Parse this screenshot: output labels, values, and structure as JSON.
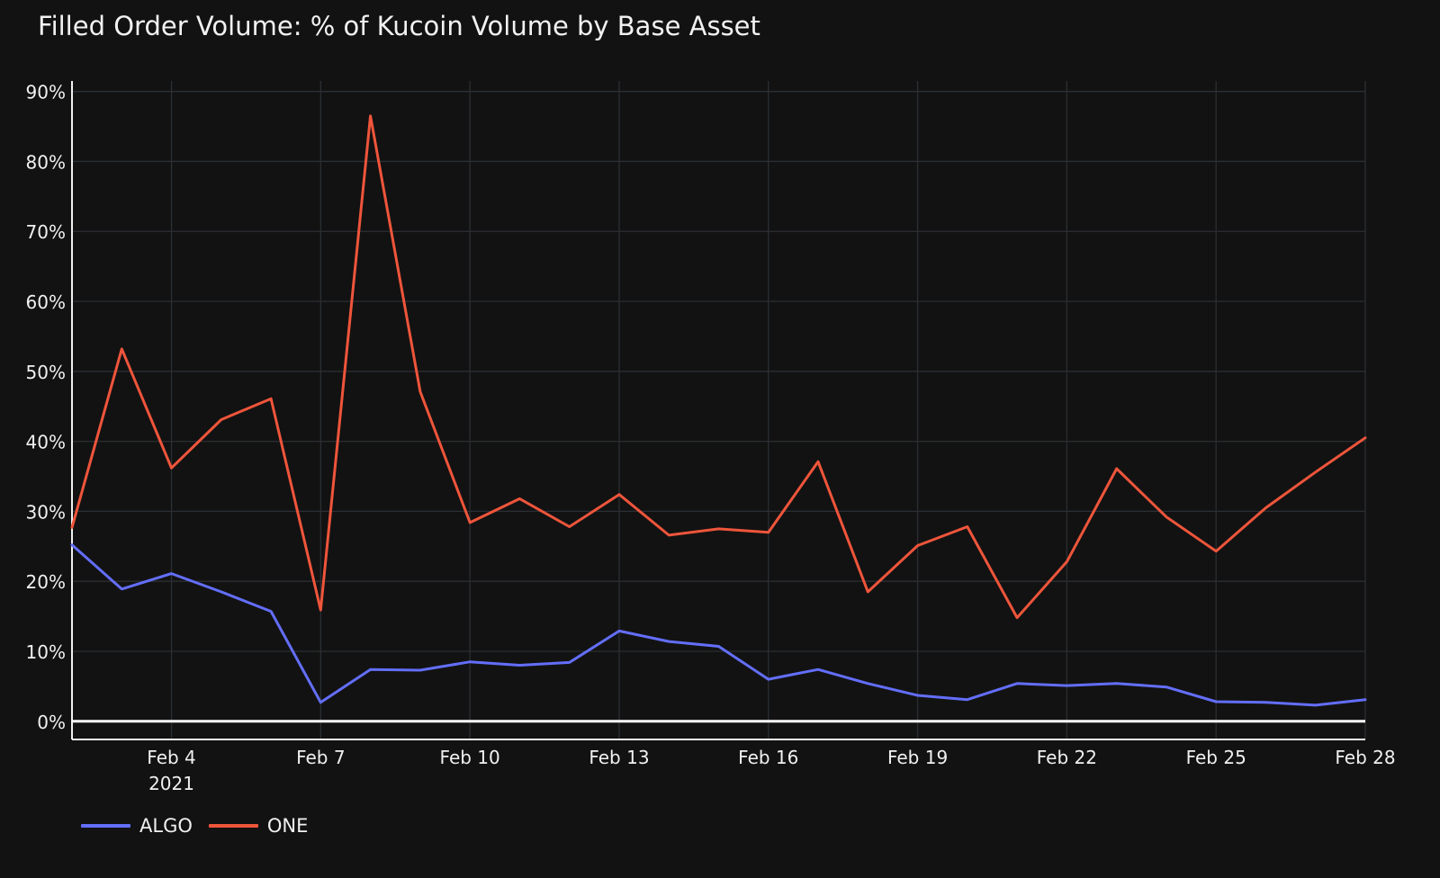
{
  "chart_data": {
    "type": "line",
    "title": "Filled Order Volume: % of Kucoin Volume by Base Asset",
    "xlabel": "",
    "ylabel": "",
    "x": [
      "2021-02-02",
      "2021-02-03",
      "2021-02-04",
      "2021-02-05",
      "2021-02-06",
      "2021-02-07",
      "2021-02-08",
      "2021-02-09",
      "2021-02-10",
      "2021-02-11",
      "2021-02-12",
      "2021-02-13",
      "2021-02-14",
      "2021-02-15",
      "2021-02-16",
      "2021-02-17",
      "2021-02-18",
      "2021-02-19",
      "2021-02-20",
      "2021-02-21",
      "2021-02-22",
      "2021-02-23",
      "2021-02-24",
      "2021-02-25",
      "2021-02-26",
      "2021-02-27",
      "2021-02-28"
    ],
    "x_ticks": [
      {
        "date": "2021-02-04",
        "label": "Feb 4",
        "sublabel": "2021"
      },
      {
        "date": "2021-02-07",
        "label": "Feb 7",
        "sublabel": ""
      },
      {
        "date": "2021-02-10",
        "label": "Feb 10",
        "sublabel": ""
      },
      {
        "date": "2021-02-13",
        "label": "Feb 13",
        "sublabel": ""
      },
      {
        "date": "2021-02-16",
        "label": "Feb 16",
        "sublabel": ""
      },
      {
        "date": "2021-02-19",
        "label": "Feb 19",
        "sublabel": ""
      },
      {
        "date": "2021-02-22",
        "label": "Feb 22",
        "sublabel": ""
      },
      {
        "date": "2021-02-25",
        "label": "Feb 25",
        "sublabel": ""
      },
      {
        "date": "2021-02-28",
        "label": "Feb 28",
        "sublabel": ""
      }
    ],
    "y_ticks": [
      {
        "value": 0,
        "label": "0%"
      },
      {
        "value": 10,
        "label": "10%"
      },
      {
        "value": 20,
        "label": "20%"
      },
      {
        "value": 30,
        "label": "30%"
      },
      {
        "value": 40,
        "label": "40%"
      },
      {
        "value": 50,
        "label": "50%"
      },
      {
        "value": 60,
        "label": "60%"
      },
      {
        "value": 70,
        "label": "70%"
      },
      {
        "value": 80,
        "label": "80%"
      },
      {
        "value": 90,
        "label": "90%"
      }
    ],
    "xlim": [
      "2021-02-02",
      "2021-02-28"
    ],
    "ylim": [
      -2.6,
      91.5
    ],
    "grid": true,
    "legend_position": "bottom-left",
    "series": [
      {
        "name": "ALGO",
        "color": "#636efa",
        "values": [
          25.2,
          18.9,
          21.1,
          18.5,
          15.7,
          2.7,
          7.4,
          7.3,
          8.5,
          8.0,
          8.4,
          12.9,
          11.4,
          10.7,
          6.0,
          7.4,
          5.4,
          3.7,
          3.1,
          5.4,
          5.1,
          5.4,
          4.9,
          2.8,
          2.7,
          2.3,
          3.1
        ]
      },
      {
        "name": "ONE",
        "color": "#ef553b",
        "values": [
          27.7,
          53.2,
          36.2,
          43.1,
          46.1,
          15.9,
          86.5,
          47.1,
          28.4,
          31.8,
          27.8,
          32.4,
          26.6,
          27.5,
          27.0,
          37.1,
          18.5,
          25.1,
          27.8,
          14.8,
          22.8,
          36.1,
          29.2,
          24.3,
          30.5,
          35.6,
          40.5
        ]
      }
    ]
  }
}
